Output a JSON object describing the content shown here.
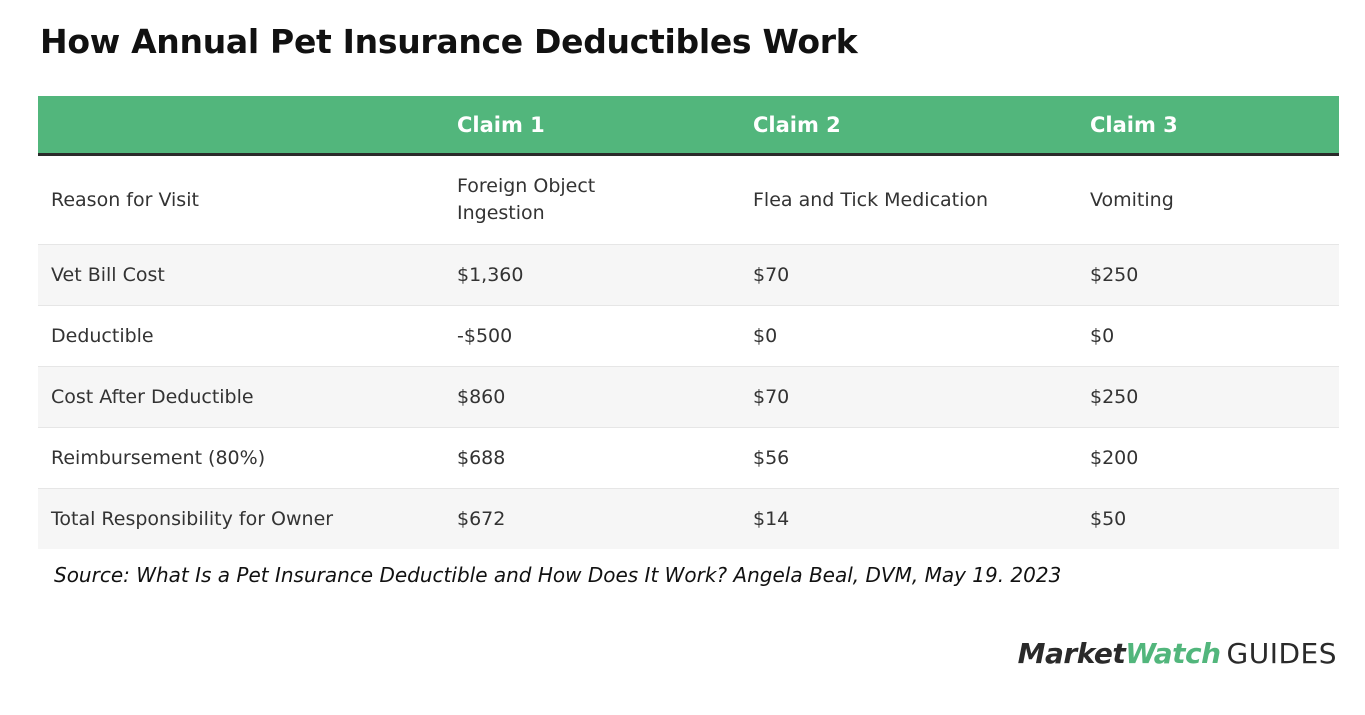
{
  "title": "How Annual Pet Insurance Deductibles Work",
  "table": {
    "headers": [
      "",
      "Claim 1",
      "Claim 2",
      "Claim 3"
    ],
    "rows": [
      {
        "label": "Reason for Visit",
        "values": [
          "Foreign Object Ingestion",
          "Flea and Tick Medication",
          "Vomiting"
        ]
      },
      {
        "label": "Vet Bill Cost",
        "values": [
          "$1,360",
          "$70",
          "$250"
        ]
      },
      {
        "label": "Deductible",
        "values": [
          "-$500",
          "$0",
          "$0"
        ]
      },
      {
        "label": "Cost After Deductible",
        "values": [
          "$860",
          "$70",
          "$250"
        ]
      },
      {
        "label": "Reimbursement (80%)",
        "values": [
          "$688",
          "$56",
          "$200"
        ]
      },
      {
        "label": "Total Responsibility for Owner",
        "values": [
          "$672",
          "$14",
          "$50"
        ]
      }
    ]
  },
  "source": "Source: What Is a Pet Insurance Deductible and How Does It Work?  Angela Beal, DVM, May 19. 2023",
  "logo": {
    "market": "Market",
    "watch": "Watch",
    "guides": "GUIDES"
  },
  "colors": {
    "header_green": "#52b67c",
    "header_text": "#ffffff",
    "stripe": "#f6f6f6",
    "rule": "#2a2a2a"
  }
}
